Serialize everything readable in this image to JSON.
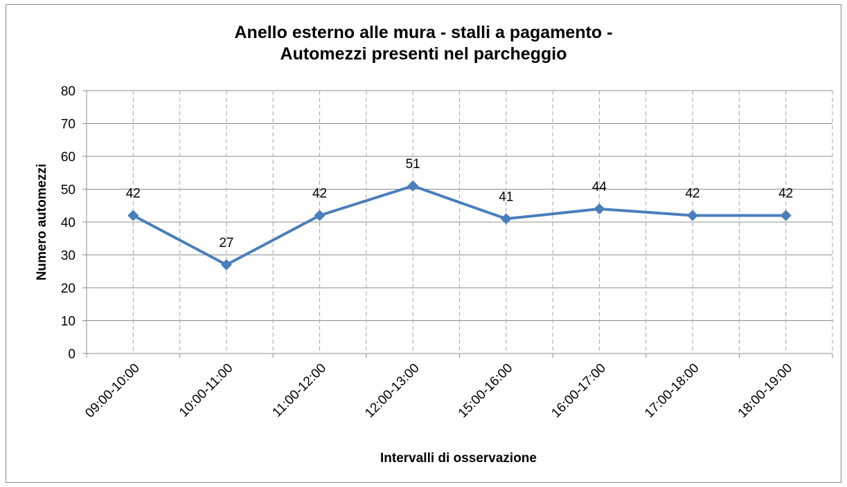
{
  "chart_data": {
    "type": "line",
    "title": "Anello esterno alle mura - stalli a pagamento -\nAutomezzi presenti nel parcheggio",
    "x_label": "Intervalli di osservazione",
    "y_label": "Numero automezzi",
    "categories": [
      "09:00-10:00",
      "10:00-11:00",
      "11:00-12:00",
      "12:00-13:00",
      "15:00-16:00",
      "16:00-17:00",
      "17:00-18:00",
      "18:00-19:00"
    ],
    "series": [
      {
        "name": "Automezzi",
        "color": "#4a7ebb",
        "values": [
          42,
          27,
          42,
          51,
          41,
          44,
          42,
          42
        ]
      }
    ],
    "ylim": [
      0,
      80
    ],
    "yticks": [
      0,
      10,
      20,
      30,
      40,
      50,
      60,
      70,
      80
    ],
    "grid": true
  }
}
